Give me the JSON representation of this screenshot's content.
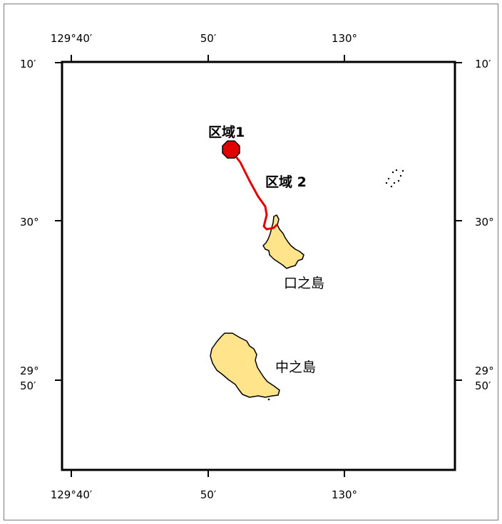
{
  "map": {
    "longitude_ticks": [
      "129°40′",
      "50′",
      "130°"
    ],
    "latitude_ticks": {
      "lat_10": "10′",
      "lat_30": "30°",
      "lat_29_deg": "29°",
      "lat_29_min": "50′"
    },
    "labels": {
      "area1": "区域1",
      "area2": "区域 2",
      "kuchinoshima": "口之島",
      "nakanoshima": "中之島"
    },
    "colors": {
      "land": "#ffe48c",
      "route": "#e00000",
      "frame": "#000000"
    }
  }
}
